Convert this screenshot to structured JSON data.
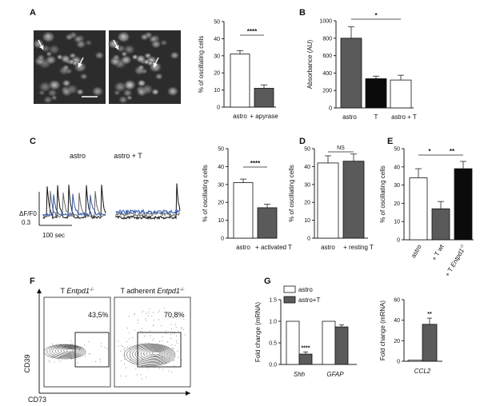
{
  "panel_letters": [
    "A",
    "B",
    "C",
    "D",
    "E",
    "F",
    "G"
  ],
  "micrograph": {
    "arrow_icon": "white-arrow-icon"
  },
  "traces": {
    "labels": [
      "astro",
      "astro + T"
    ],
    "scale_y": [
      "ΔF/F0",
      "0.3"
    ],
    "scale_x": "100 sec",
    "colors": {
      "black": "#111111",
      "grey": "#666666",
      "blue": "#2e58b5"
    }
  },
  "flow": {
    "titles": [
      {
        "prefix": "T ",
        "gene": "Entpd1",
        "sup": "-/-"
      },
      {
        "prefix": "T adherent ",
        "gene": "Entpd1",
        "sup": "-/-"
      }
    ],
    "percentages": [
      "43,5%",
      "70,8%"
    ],
    "xlabel": "CD73",
    "ylabel": "CD39"
  },
  "colors": {
    "white_bar": "#ffffff",
    "grey_bar": "#5a5a5a",
    "black_bar": "#0b0b0b",
    "axis": "#222222"
  },
  "chart_data": [
    {
      "id": "A",
      "type": "bar",
      "categories": [
        "astro",
        "+ apyrase"
      ],
      "values": [
        31,
        11
      ],
      "errors": [
        2,
        2
      ],
      "fills": [
        "white",
        "grey"
      ],
      "ylabel": "% of oscillating cells",
      "ylim": [
        0,
        50
      ],
      "yticks": [
        0,
        10,
        20,
        30,
        40,
        50
      ],
      "sig": [
        {
          "from": 0,
          "to": 1,
          "label": "****"
        }
      ]
    },
    {
      "id": "B",
      "type": "bar",
      "categories": [
        "astro",
        "T",
        "astro + T"
      ],
      "values": [
        800,
        335,
        320
      ],
      "errors": [
        130,
        30,
        55
      ],
      "fills": [
        "grey",
        "black",
        "white"
      ],
      "ylabel": "Absorbance (AU)",
      "ylim": [
        0,
        1000
      ],
      "yticks": [
        0,
        200,
        400,
        600,
        800,
        1000
      ],
      "sig": [
        {
          "from": 0,
          "to": 2,
          "label": "*"
        }
      ]
    },
    {
      "id": "C",
      "type": "bar",
      "categories": [
        "astro",
        "+ activated T"
      ],
      "values": [
        31,
        17
      ],
      "errors": [
        2,
        2
      ],
      "fills": [
        "white",
        "grey"
      ],
      "ylabel": "% of oscillating cells",
      "ylim": [
        0,
        50
      ],
      "yticks": [
        0,
        10,
        20,
        30,
        40,
        50
      ],
      "sig": [
        {
          "from": 0,
          "to": 1,
          "label": "****"
        }
      ]
    },
    {
      "id": "D",
      "type": "bar",
      "categories": [
        "astro",
        "+ resting T"
      ],
      "values": [
        42,
        43
      ],
      "errors": [
        4,
        4
      ],
      "fills": [
        "white",
        "grey"
      ],
      "ylabel": "% of oscillating cells",
      "ylim": [
        0,
        50
      ],
      "yticks": [
        0,
        10,
        20,
        30,
        40,
        50
      ],
      "sig": [
        {
          "from": 0,
          "to": 1,
          "label": "NS"
        }
      ]
    },
    {
      "id": "E",
      "type": "bar",
      "categories": [
        "astro",
        "+ T wt",
        "+ T Entpd1-/-"
      ],
      "values": [
        34,
        17,
        39
      ],
      "errors": [
        5,
        4,
        4
      ],
      "fills": [
        "white",
        "grey",
        "black"
      ],
      "ylabel": "% of oscillating cells",
      "ylim": [
        0,
        50
      ],
      "yticks": [
        0,
        10,
        20,
        30,
        40,
        50
      ],
      "sig": [
        {
          "from": 0,
          "to": 1,
          "label": "*"
        },
        {
          "from": 1,
          "to": 2,
          "label": "**"
        }
      ]
    },
    {
      "id": "G1",
      "type": "bar",
      "categories": [
        "Shh",
        "GFAP"
      ],
      "series": [
        {
          "name": "astro",
          "values": [
            1.0,
            1.0
          ],
          "errors": [
            0,
            0
          ]
        },
        {
          "name": "astro+T",
          "values": [
            0.24,
            0.87
          ],
          "errors": [
            0.05,
            0.05
          ]
        }
      ],
      "ylabel": "Fold change (mRNA)",
      "ylim": [
        0,
        1.5
      ],
      "yticks": [
        0.0,
        0.5,
        1.0,
        1.5
      ],
      "sig_labels": [
        {
          "category": 0,
          "series": 1,
          "label": "****"
        }
      ]
    },
    {
      "id": "G2",
      "type": "bar",
      "categories": [
        "CCL2"
      ],
      "series": [
        {
          "name": "astro",
          "values": [
            1
          ],
          "errors": [
            0
          ]
        },
        {
          "name": "astro+T",
          "values": [
            36
          ],
          "errors": [
            6
          ]
        }
      ],
      "ylabel": "Fold change (mRNA)",
      "ylim": [
        0,
        60
      ],
      "yticks": [
        0,
        20,
        40,
        60
      ],
      "sig_labels": [
        {
          "category": 0,
          "series": 1,
          "label": "**"
        }
      ]
    }
  ]
}
